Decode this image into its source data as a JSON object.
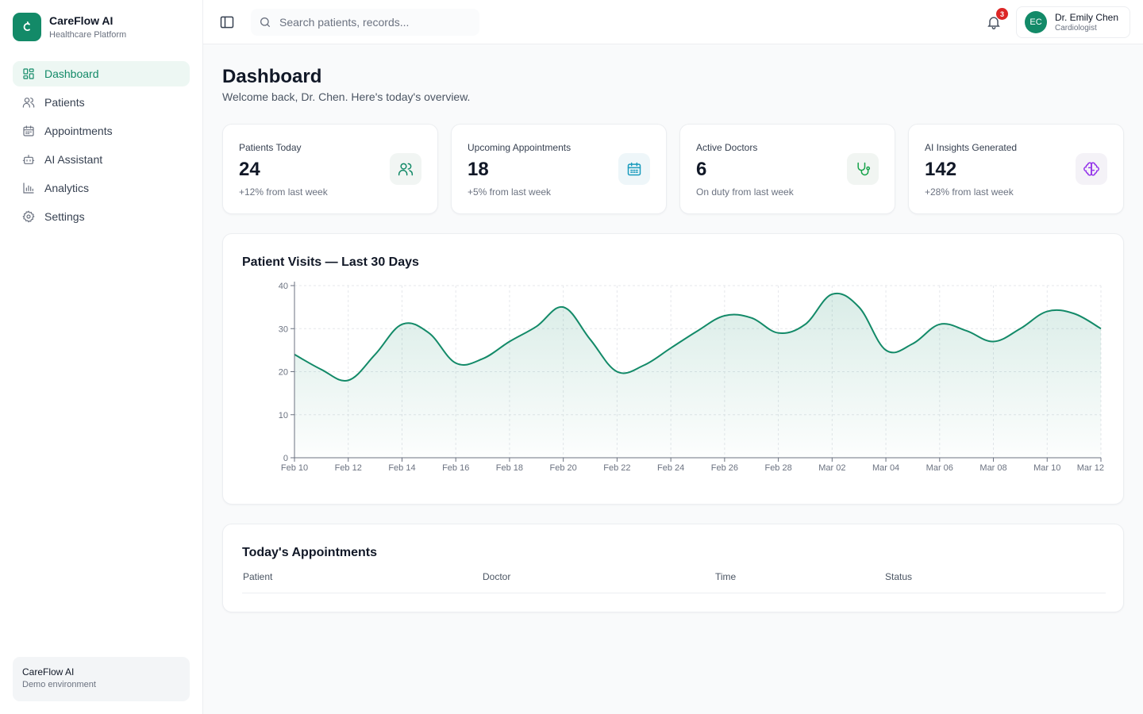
{
  "brand": {
    "name": "CareFlow AI",
    "subtitle": "Healthcare Platform"
  },
  "nav": [
    {
      "label": "Dashboard",
      "icon": "dashboard-icon",
      "active": true
    },
    {
      "label": "Patients",
      "icon": "users-icon"
    },
    {
      "label": "Appointments",
      "icon": "calendar-icon"
    },
    {
      "label": "AI Assistant",
      "icon": "bot-icon"
    },
    {
      "label": "Analytics",
      "icon": "bar-chart-icon"
    },
    {
      "label": "Settings",
      "icon": "gear-icon"
    }
  ],
  "sidebar_footer": {
    "title": "CareFlow AI",
    "subtitle": "Demo environment"
  },
  "header": {
    "search_placeholder": "Search patients, records...",
    "notification_count": "3",
    "user": {
      "initials": "EC",
      "name": "Dr. Emily Chen",
      "role": "Cardiologist"
    }
  },
  "page": {
    "title": "Dashboard",
    "subtitle": "Welcome back, Dr. Chen. Here's today's overview."
  },
  "stats": [
    {
      "label": "Patients Today",
      "value": "24",
      "sub": "+12% from last week",
      "icon": "users-icon",
      "color": "#138a68",
      "bg": "#f1f5f3"
    },
    {
      "label": "Upcoming Appointments",
      "value": "18",
      "sub": "+5% from last week",
      "icon": "calendar-icon",
      "color": "#1a9bbd",
      "bg": "#eef6f9"
    },
    {
      "label": "Active Doctors",
      "value": "6",
      "sub": "On duty from last week",
      "icon": "stethoscope-icon",
      "color": "#16a34a",
      "bg": "#f1f5f2"
    },
    {
      "label": "AI Insights Generated",
      "value": "142",
      "sub": "+28% from last week",
      "icon": "brain-icon",
      "color": "#9333ea",
      "bg": "#f4f2f7"
    }
  ],
  "chart_data": {
    "type": "area",
    "title": "Patient Visits — Last 30 Days",
    "xlabel": "",
    "ylabel": "",
    "ylim": [
      0,
      40
    ],
    "yticks": [
      0,
      10,
      20,
      30,
      40
    ],
    "grid": true,
    "color": "#138a68",
    "x": [
      "Feb 10",
      "Feb 11",
      "Feb 12",
      "Feb 13",
      "Feb 14",
      "Feb 15",
      "Feb 16",
      "Feb 17",
      "Feb 18",
      "Feb 19",
      "Feb 20",
      "Feb 21",
      "Feb 22",
      "Feb 23",
      "Feb 24",
      "Feb 25",
      "Feb 26",
      "Feb 27",
      "Feb 28",
      "Mar 01",
      "Mar 02",
      "Mar 03",
      "Mar 04",
      "Mar 05",
      "Mar 06",
      "Mar 07",
      "Mar 08",
      "Mar 09",
      "Mar 10",
      "Mar 11",
      "Mar 12"
    ],
    "xtick_labels": [
      "Feb 10",
      "Feb 12",
      "Feb 14",
      "Feb 16",
      "Feb 18",
      "Feb 20",
      "Feb 22",
      "Feb 24",
      "Feb 26",
      "Feb 28",
      "Mar 02",
      "Mar 04",
      "Mar 06",
      "Mar 08",
      "Mar 10",
      "Mar 12"
    ],
    "values": [
      24,
      20.5,
      18,
      24,
      31,
      29,
      22,
      23,
      27,
      30.5,
      35,
      27.5,
      20,
      21.5,
      25.5,
      29.5,
      33,
      32.5,
      29,
      31,
      38,
      35,
      25,
      26.5,
      31,
      29.5,
      27,
      30,
      34,
      33.5,
      30
    ]
  },
  "appointments": {
    "title": "Today's Appointments",
    "columns": [
      "Patient",
      "Doctor",
      "Time",
      "Status"
    ],
    "rows": []
  }
}
